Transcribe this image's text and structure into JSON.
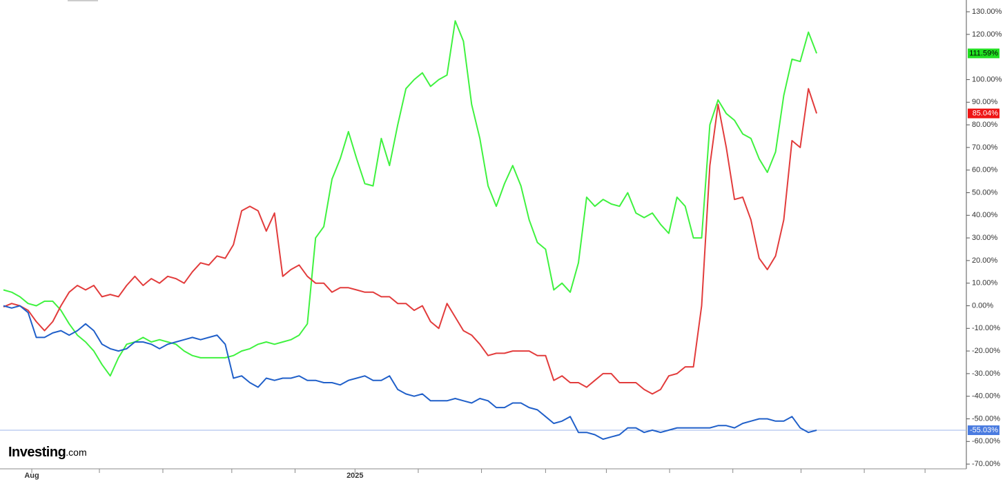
{
  "chart_data": {
    "type": "line",
    "series": [
      {
        "color": "#3ff23f",
        "end_label": {
          "value": 111.59,
          "label": "111.59%"
        },
        "label_color": "#22e022",
        "label_text_color": "#000000",
        "values": [
          7,
          6,
          4,
          1,
          0,
          2,
          2,
          -2,
          -8,
          -13,
          -16,
          -20,
          -26,
          -31,
          -23,
          -17,
          -16,
          -14,
          -16,
          -15,
          -16,
          -17,
          -20,
          -22,
          -23,
          -23,
          -23,
          -23,
          -22,
          -20,
          -19,
          -17,
          -16,
          -17,
          -16,
          -15,
          -13,
          -8,
          30,
          35,
          56,
          65,
          77,
          65,
          54,
          53,
          74,
          62,
          80,
          96,
          100,
          103,
          97,
          100,
          102,
          126,
          117,
          89,
          74,
          53,
          44,
          54,
          62,
          53,
          38,
          28,
          25,
          7,
          10,
          6,
          19,
          48,
          44,
          47,
          45,
          44,
          50,
          41,
          39,
          41,
          36,
          32,
          48,
          44,
          30,
          30,
          80,
          91,
          85,
          82,
          76,
          74,
          65,
          59,
          68,
          93,
          109,
          108,
          121,
          111.59
        ]
      },
      {
        "color": "#e23b3b",
        "end_label": {
          "value": 85.04,
          "label": "85.04%"
        },
        "label_color": "#ee1515",
        "label_text_color": "#ffffff",
        "values": [
          -0.5,
          1,
          0,
          -2,
          -7,
          -11,
          -7,
          0,
          6,
          9,
          7,
          9,
          4,
          5,
          4,
          9,
          13,
          9,
          12,
          10,
          13,
          12,
          10,
          15,
          19,
          18,
          22,
          21,
          27,
          42,
          44,
          42,
          33,
          41,
          13,
          16,
          18,
          13,
          10,
          10,
          6,
          8,
          8,
          7,
          6,
          6,
          4,
          4,
          1,
          1,
          -2,
          0,
          -7,
          -10,
          1,
          -5,
          -11,
          -13,
          -17,
          -22,
          -21,
          -21,
          -20,
          -20,
          -20,
          -22,
          -22,
          -33,
          -31,
          -34,
          -34,
          -36,
          -33,
          -30,
          -30,
          -34,
          -34,
          -34,
          -37,
          -39,
          -37,
          -31,
          -30,
          -27,
          -27,
          0,
          62,
          89,
          70,
          47,
          48,
          38,
          21,
          16,
          22,
          38,
          73,
          70,
          96,
          85.04
        ]
      },
      {
        "color": "#1f5fc9",
        "end_label": {
          "value": -55.03,
          "label": "-55.03%"
        },
        "label_color": "#4a7be0",
        "label_text_color": "#ffffff",
        "price_line": true,
        "values": [
          0,
          -1,
          0,
          -3,
          -14,
          -14,
          -12,
          -11,
          -13,
          -11,
          -8,
          -11,
          -17,
          -19,
          -20,
          -19,
          -16,
          -16,
          -17,
          -19,
          -17,
          -16,
          -15,
          -14,
          -15,
          -14,
          -13,
          -17,
          -32,
          -31,
          -34,
          -36,
          -32,
          -33,
          -32,
          -32,
          -31,
          -33,
          -33,
          -34,
          -34,
          -35,
          -33,
          -32,
          -31,
          -33,
          -33,
          -31,
          -37,
          -39,
          -40,
          -39,
          -42,
          -42,
          -42,
          -41,
          -42,
          -43,
          -41,
          -42,
          -45,
          -45,
          -43,
          -43,
          -45,
          -46,
          -49,
          -52,
          -51,
          -49,
          -56,
          -56,
          -57,
          -59,
          -58,
          -57,
          -54,
          -54,
          -56,
          -55,
          -56,
          -55,
          -54,
          -54,
          -54,
          -54,
          -54,
          -53,
          -53,
          -54,
          -52,
          -51,
          -50,
          -50,
          -51,
          -51,
          -49,
          -54,
          -56,
          -55.03
        ]
      }
    ],
    "xlim": [
      -0.42,
      117.06
    ],
    "xticks": [
      {
        "value": 3.45,
        "label": "Aug"
      },
      {
        "value": 11.68,
        "label": null
      },
      {
        "value": 19.41,
        "label": null
      },
      {
        "value": 27.8,
        "label": null
      },
      {
        "value": 35.5,
        "label": null
      },
      {
        "value": 42.8,
        "label": "2025"
      },
      {
        "value": 50.5,
        "label": null
      },
      {
        "value": 58.2,
        "label": null
      },
      {
        "value": 66,
        "label": null
      },
      {
        "value": 73.4,
        "label": null
      },
      {
        "value": 81.1,
        "label": null
      },
      {
        "value": 88.8,
        "label": null
      },
      {
        "value": 97.1,
        "label": null
      },
      {
        "value": 104.8,
        "label": null
      },
      {
        "value": 112.2,
        "label": null
      }
    ],
    "ylim": [
      -72.1,
      135.2
    ],
    "yticks": [
      {
        "value": 130,
        "label": "130.00%"
      },
      {
        "value": 120,
        "label": "120.00%"
      },
      {
        "value": 100,
        "label": "100.00%"
      },
      {
        "value": 90,
        "label": "90.00%"
      },
      {
        "value": 80,
        "label": "80.00%"
      },
      {
        "value": 70,
        "label": "70.00%"
      },
      {
        "value": 60,
        "label": "60.00%"
      },
      {
        "value": 50,
        "label": "50.00%"
      },
      {
        "value": 40,
        "label": "40.00%"
      },
      {
        "value": 30,
        "label": "30.00%"
      },
      {
        "value": 20,
        "label": "20.00%"
      },
      {
        "value": 10,
        "label": "10.00%"
      },
      {
        "value": 0,
        "label": "0.00%"
      },
      {
        "value": -10,
        "label": "-10.00%"
      },
      {
        "value": -20,
        "label": "-20.00%"
      },
      {
        "value": -30,
        "label": "-30.00%"
      },
      {
        "value": -40,
        "label": "-40.00%"
      },
      {
        "value": -50,
        "label": "-50.00%"
      },
      {
        "value": -60,
        "label": "-60.00%"
      },
      {
        "value": -70,
        "label": "-70.00%"
      }
    ],
    "axis_position": "right",
    "watermark": {
      "brand": "Investing",
      "suffix": ".com"
    }
  }
}
